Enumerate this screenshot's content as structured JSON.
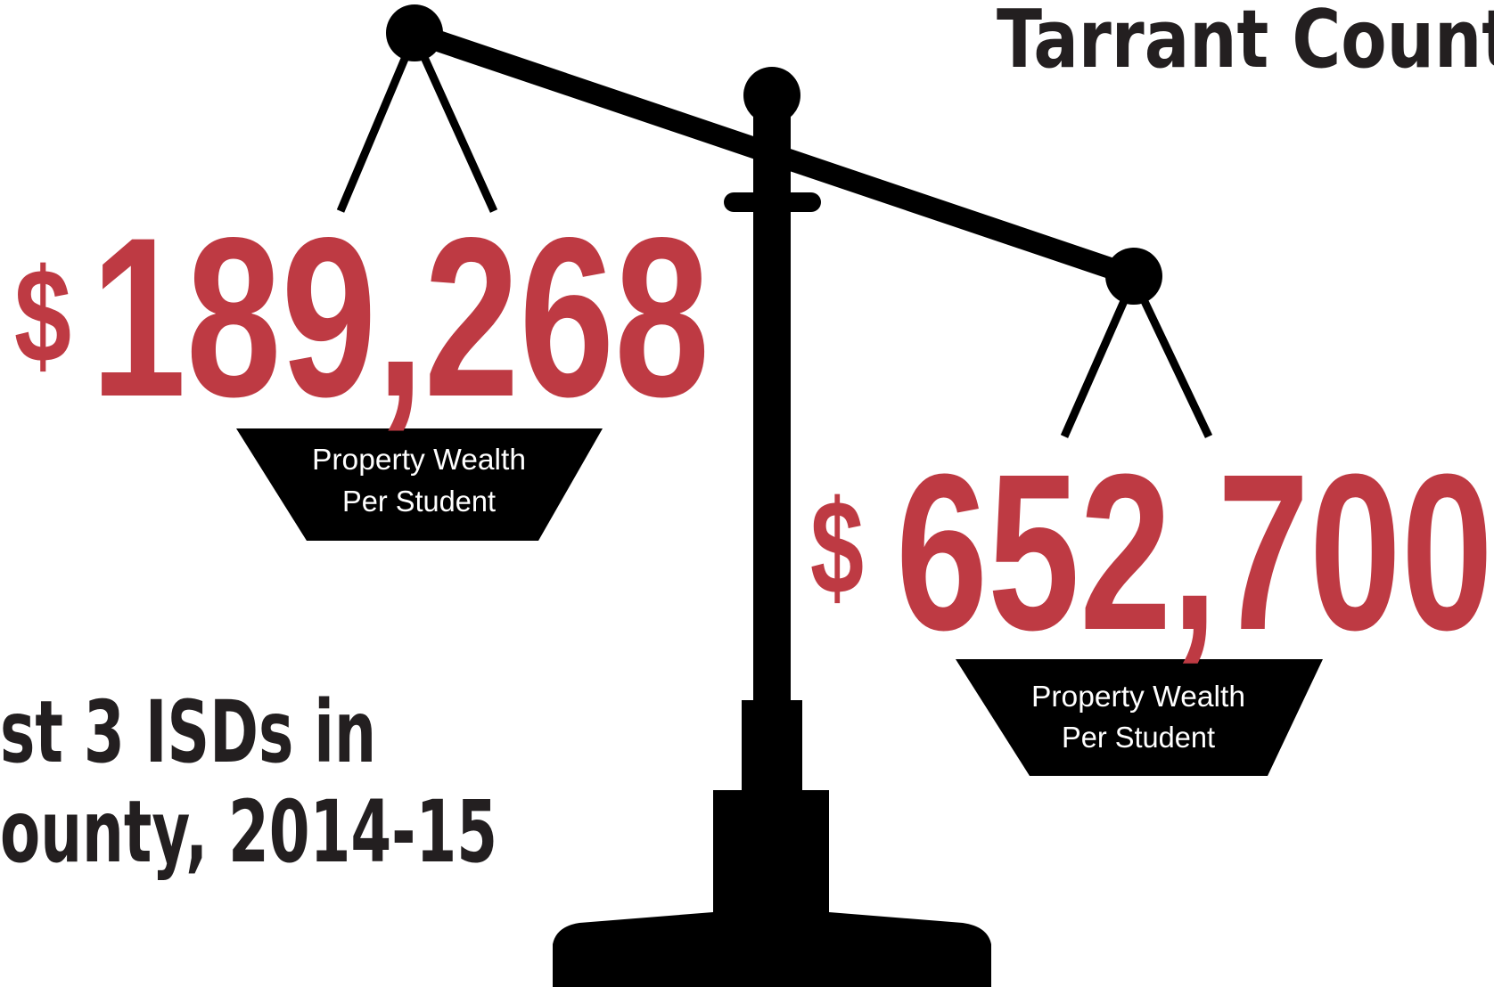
{
  "header": {
    "title": "Tarrant Count"
  },
  "caption": {
    "lines": [
      "st 3 ISDs in",
      "ounty, 2014-15"
    ]
  },
  "pans": [
    {
      "currency": "$",
      "amount": "189,268",
      "label": [
        "Property Wealth",
        "Per Student"
      ]
    },
    {
      "currency": "$",
      "amount": "652,700",
      "label": [
        "Property Wealth",
        "Per Student"
      ]
    }
  ]
}
